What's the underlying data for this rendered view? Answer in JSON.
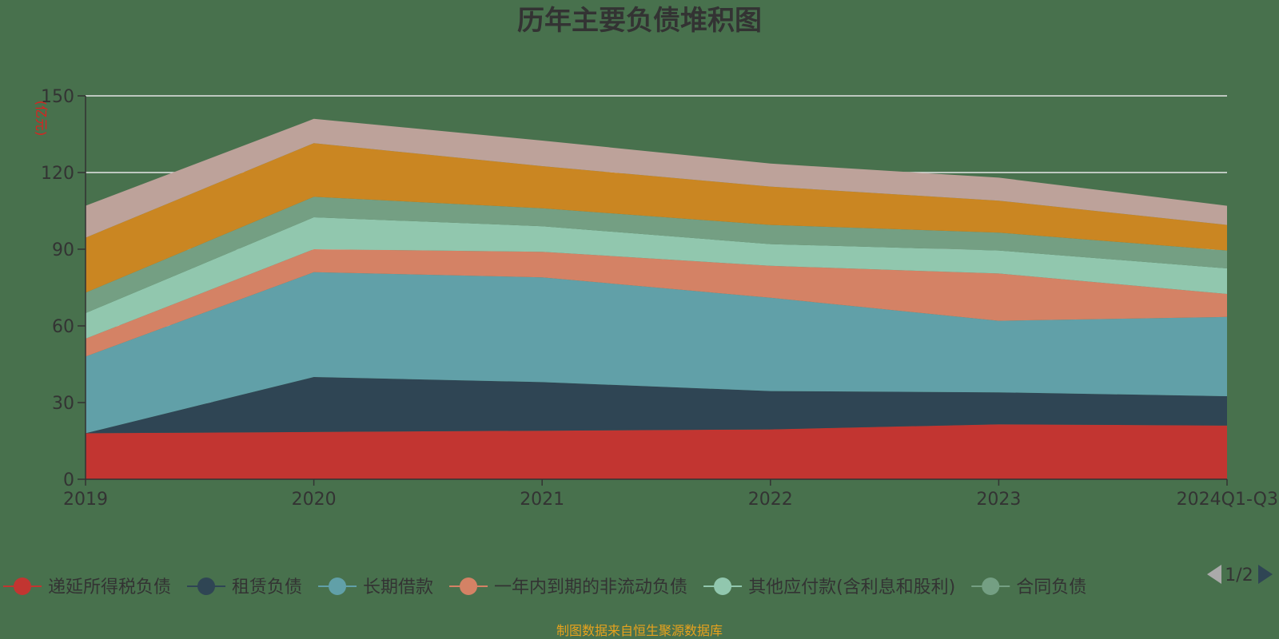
{
  "chart_data": {
    "type": "area",
    "title": "历年主要负债堆积图",
    "unit_label": "亿元",
    "categories": [
      "2019",
      "2020",
      "2021",
      "2022",
      "2023",
      "2024Q1-Q3"
    ],
    "ylim": [
      0,
      150
    ],
    "yticks": [
      0,
      30,
      60,
      90,
      120,
      150
    ],
    "stacked": true,
    "grid": true,
    "legend_position": "bottom",
    "series": [
      {
        "name": "递延所得税负债",
        "color": "#c23531",
        "values": [
          18,
          18.5,
          19,
          19.5,
          21.5,
          21
        ]
      },
      {
        "name": "租赁负债",
        "color": "#2f4554",
        "values": [
          0,
          21.5,
          19,
          15,
          12.5,
          11.5
        ]
      },
      {
        "name": "长期借款",
        "color": "#61a0a8",
        "values": [
          30,
          41,
          41,
          36.5,
          28,
          31
        ]
      },
      {
        "name": "一年内到期的非流动负债",
        "color": "#d48265",
        "values": [
          7,
          9,
          10,
          12.5,
          18.5,
          9
        ]
      },
      {
        "name": "其他应付款(含利息和股利)",
        "color": "#91c7ae",
        "values": [
          10,
          12.5,
          10,
          8.5,
          9,
          10
        ]
      },
      {
        "name": "合同负债",
        "color": "#749f83",
        "values": [
          8,
          8,
          7,
          7.5,
          7,
          7
        ]
      },
      {
        "name": "",
        "color": "#ca8622",
        "values": [
          21.5,
          21,
          16.5,
          15,
          12.5,
          10
        ]
      },
      {
        "name": "",
        "color": "#bda29a",
        "values": [
          12.5,
          9.5,
          10,
          9,
          9,
          7.5
        ]
      }
    ]
  },
  "legend": {
    "page_indicator": "1/2"
  },
  "footer": {
    "source": "制图数据来自恒生聚源数据库"
  }
}
